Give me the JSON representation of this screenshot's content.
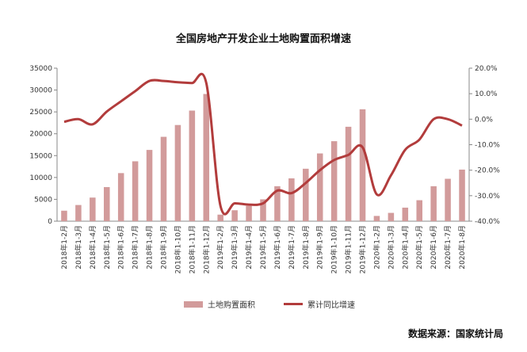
{
  "chart_data": {
    "type": "bar",
    "title": "全国房地产开发企业土地购置面积增速",
    "categories": [
      "2018年1-2月",
      "2018年1-3月",
      "2018年1-4月",
      "2018年1-5月",
      "2018年1-6月",
      "2018年1-7月",
      "2018年1-8月",
      "2018年1-9月",
      "2018年1-10月",
      "2018年1-11月",
      "2018年1-12月",
      "2019年1-2月",
      "2019年1-3月",
      "2019年1-4月",
      "2019年1-5月",
      "2019年1-6月",
      "2019年1-7月",
      "2019年1-8月",
      "2019年1-9月",
      "2019年1-10月",
      "2019年1-11月",
      "2019年1-12月",
      "2020年1-2月",
      "2020年1-3月",
      "2020年1-4月",
      "2020年1-5月",
      "2020年1-6月",
      "2020年1-7月",
      "2020年1-8月"
    ],
    "series": [
      {
        "name": "土地购置面积",
        "type": "bar",
        "axis": "left",
        "color": "#D29B9B",
        "values": [
          2400,
          3700,
          5400,
          7800,
          11000,
          13700,
          16300,
          19300,
          22000,
          25300,
          29100,
          1500,
          2500,
          3500,
          5000,
          8000,
          9800,
          12000,
          15500,
          18300,
          21600,
          25600,
          1200,
          1900,
          3100,
          4800,
          8000,
          9700,
          11800
        ]
      },
      {
        "name": "累计同比增速",
        "type": "line",
        "axis": "right",
        "color": "#B23C3C",
        "values": [
          -1.0,
          0.0,
          -2.0,
          3.0,
          7.0,
          11.0,
          15.0,
          15.0,
          14.5,
          14.2,
          14.2,
          -34.0,
          -33.0,
          -33.5,
          -33.0,
          -28.0,
          -29.0,
          -25.0,
          -20.0,
          -16.0,
          -14.0,
          -11.0,
          -29.5,
          -22.0,
          -12.0,
          -8.0,
          0.0,
          0.0,
          -2.5
        ]
      }
    ],
    "yleft": {
      "min": 0,
      "max": 35000,
      "step": 5000,
      "tick_labels": [
        "0",
        "5000",
        "10000",
        "15000",
        "20000",
        "25000",
        "30000",
        "35000"
      ]
    },
    "yright": {
      "min": -40,
      "max": 20,
      "step": 10,
      "tick_labels": [
        "-40.0%",
        "-30.0%",
        "-20.0%",
        "-10.0%",
        "0.0%",
        "10.0%",
        "20.0%"
      ]
    },
    "grid": false,
    "legend_position": "bottom"
  },
  "source_label": "数据来源：国家统计局"
}
